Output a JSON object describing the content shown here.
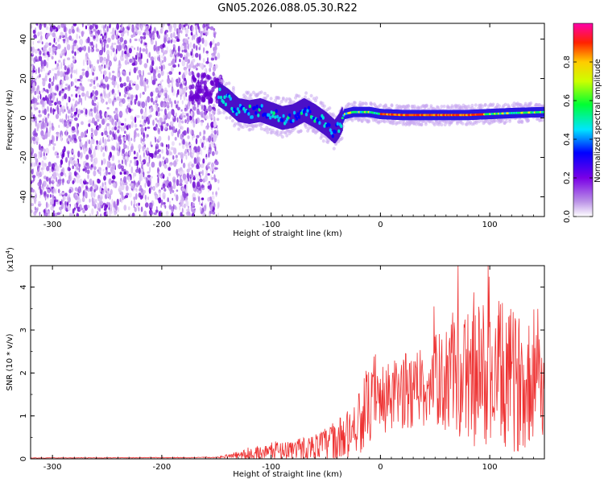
{
  "title": "GN05.2026.088.05.30.R22",
  "chart_data": [
    {
      "type": "heatmap",
      "name": "spectrogram",
      "xlabel": "Height of straight line (km)",
      "ylabel": "Frequency (Hz)",
      "xlim": [
        -320,
        150
      ],
      "ylim": [
        -50,
        48
      ],
      "xticks": [
        -300,
        -200,
        -100,
        0,
        100
      ],
      "xtick_labels": [
        "-300",
        "-200",
        "-100",
        "0",
        "100"
      ],
      "yticks": [
        -40,
        -20,
        0,
        20,
        40
      ],
      "ytick_labels": [
        "-40",
        "-20",
        "0",
        "20",
        "40"
      ],
      "noise_region_x": [
        -320,
        -148
      ],
      "signal_track": [
        {
          "x": -148,
          "y": 12
        },
        {
          "x": -140,
          "y": 9
        },
        {
          "x": -130,
          "y": 4
        },
        {
          "x": -120,
          "y": 3
        },
        {
          "x": -110,
          "y": 4
        },
        {
          "x": -100,
          "y": 2
        },
        {
          "x": -90,
          "y": 0
        },
        {
          "x": -80,
          "y": 1
        },
        {
          "x": -70,
          "y": 4
        },
        {
          "x": -60,
          "y": 1
        },
        {
          "x": -50,
          "y": -3
        },
        {
          "x": -42,
          "y": -7
        },
        {
          "x": -38,
          "y": -4
        },
        {
          "x": -33,
          "y": 2
        },
        {
          "x": -25,
          "y": 3
        },
        {
          "x": -10,
          "y": 3
        },
        {
          "x": 0,
          "y": 2
        },
        {
          "x": 20,
          "y": 1.5
        },
        {
          "x": 50,
          "y": 1.5
        },
        {
          "x": 80,
          "y": 1.5
        },
        {
          "x": 100,
          "y": 2
        },
        {
          "x": 120,
          "y": 2.5
        },
        {
          "x": 150,
          "y": 3
        }
      ],
      "colorbar": {
        "label": "Normalized spectral amplitude",
        "range": [
          0,
          1
        ],
        "ticks": [
          0.0,
          0.2,
          0.4,
          0.6,
          0.8
        ],
        "tick_labels": [
          "0.0",
          "0.2",
          "0.4",
          "0.6",
          "0.8"
        ],
        "colors": [
          "#ffffff",
          "#8a2be2",
          "#0000ff",
          "#00ffff",
          "#00ff00",
          "#ffff00",
          "#ff8000",
          "#ff0000",
          "#ff00ff"
        ]
      }
    },
    {
      "type": "line",
      "name": "snr",
      "xlabel": "Height of straight line (km)",
      "ylabel": "SNR (10 * v/v)",
      "scale_label": "(x10",
      "scale_exponent": "4",
      "scale_suffix": ")",
      "xlim": [
        -320,
        150
      ],
      "ylim": [
        0,
        4.5
      ],
      "xticks": [
        -300,
        -200,
        -100,
        0,
        100
      ],
      "xtick_labels": [
        "-300",
        "-200",
        "-100",
        "0",
        "100"
      ],
      "yticks": [
        0,
        1,
        2,
        3,
        4
      ],
      "ytick_labels": [
        "0",
        "1",
        "2",
        "3",
        "4"
      ],
      "color": "#ee3333",
      "envelope_x": [
        -320,
        -150,
        -140,
        -120,
        -100,
        -80,
        -60,
        -40,
        -30,
        -20,
        -10,
        0,
        20,
        40,
        60,
        80,
        100,
        120,
        150
      ],
      "envelope_mean": [
        0.02,
        0.03,
        0.06,
        0.1,
        0.18,
        0.22,
        0.28,
        0.4,
        0.55,
        0.9,
        1.2,
        1.3,
        1.55,
        1.75,
        1.85,
        1.9,
        1.95,
        1.8,
        1.7
      ],
      "envelope_amp": [
        0.005,
        0.01,
        0.05,
        0.15,
        0.2,
        0.25,
        0.3,
        0.5,
        0.6,
        0.8,
        0.9,
        0.8,
        0.9,
        1.0,
        1.2,
        1.6,
        1.9,
        1.7,
        1.2
      ]
    }
  ]
}
